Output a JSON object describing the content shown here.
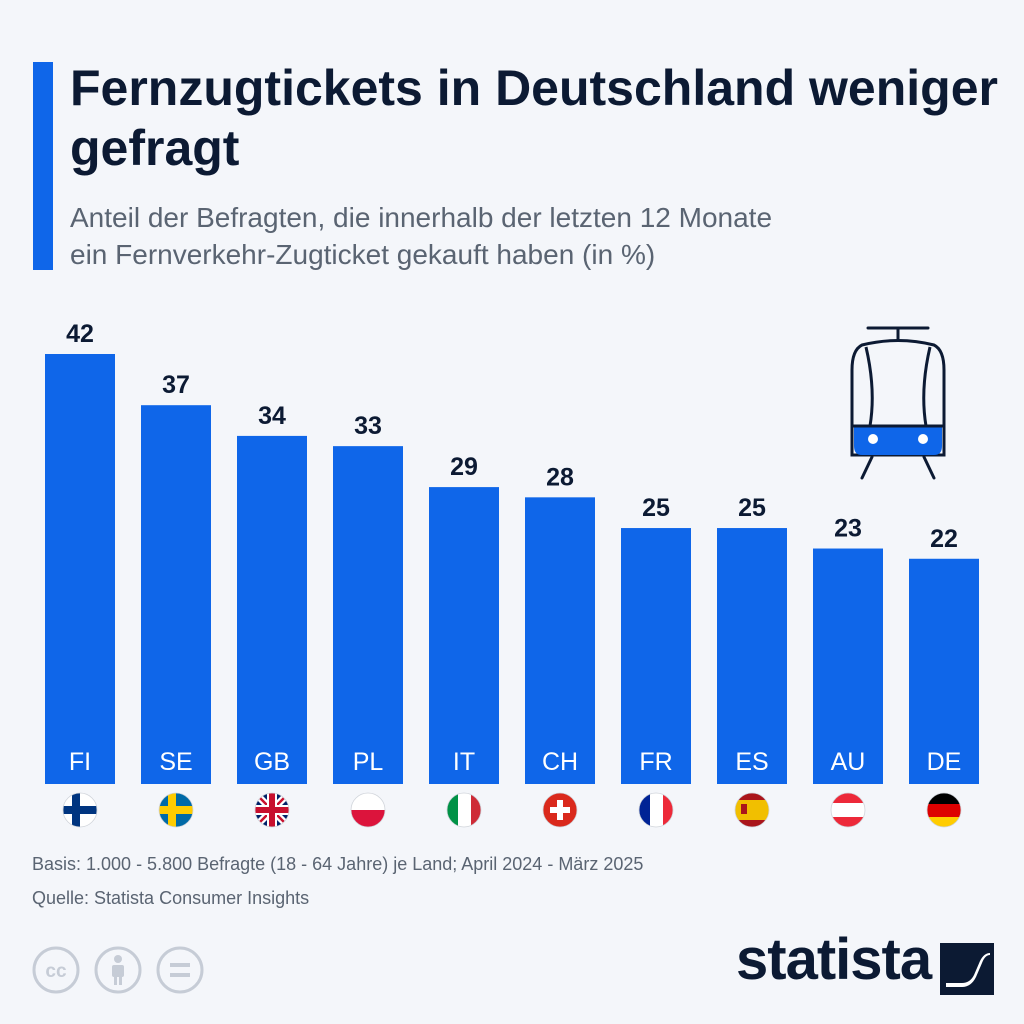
{
  "title": "Fernzugtickets in Deutschland weniger gefragt",
  "subtitle_line1": "Anteil der Befragten, die innerhalb der letzten 12 Monate",
  "subtitle_line2": "ein Fernverkehr-Zugticket gekauft haben (in %)",
  "footer": {
    "basis": "Basis: 1.000 - 5.800 Befragte (18 - 64 Jahre) je Land; April 2024 - März 2025",
    "source": "Quelle: Statista Consumer Insights"
  },
  "brand": "statista",
  "license_icons": [
    "cc-icon",
    "attribution-icon",
    "no-derivatives-icon"
  ],
  "decor_icon": "tram-icon",
  "colors": {
    "bar": "#0f66e9",
    "title": "#0c1a33",
    "text": "#5a6472",
    "background": "#f4f6fa"
  },
  "chart_data": {
    "type": "bar",
    "categories": [
      "FI",
      "SE",
      "GB",
      "PL",
      "IT",
      "CH",
      "FR",
      "ES",
      "AU",
      "DE"
    ],
    "values": [
      42,
      37,
      34,
      33,
      29,
      28,
      25,
      25,
      23,
      22
    ],
    "flags": [
      "finland-flag-icon",
      "sweden-flag-icon",
      "uk-flag-icon",
      "poland-flag-icon",
      "italy-flag-icon",
      "switzerland-flag-icon",
      "france-flag-icon",
      "spain-flag-icon",
      "austria-flag-icon",
      "germany-flag-icon"
    ],
    "ylim": [
      0,
      42
    ],
    "grid": false,
    "legend": "none"
  }
}
